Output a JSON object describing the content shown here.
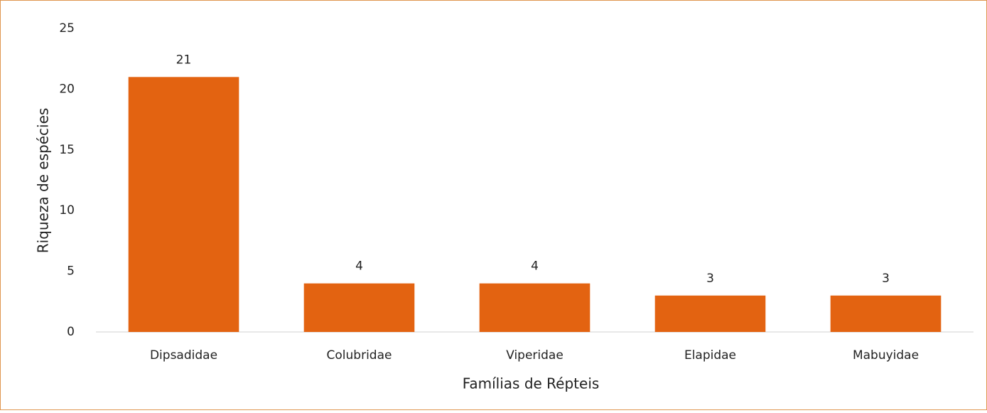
{
  "chart_data": {
    "type": "bar",
    "x_label": "Famílias de Répteis",
    "y_label": "Riqueza de espécies",
    "categories": [
      "Dipsadidae",
      "Colubridae",
      "Viperidae",
      "Elapidae",
      "Mabuyidae"
    ],
    "values": [
      21,
      4,
      4,
      3,
      3
    ],
    "color": "#e36311",
    "ylim": [
      0,
      25
    ],
    "yticks": [
      0,
      5,
      10,
      15,
      20,
      25
    ],
    "grid": false
  }
}
